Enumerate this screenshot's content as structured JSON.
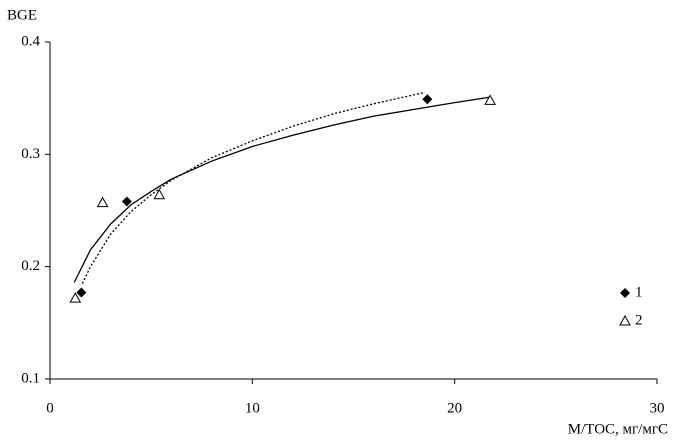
{
  "chart_data": {
    "type": "scatter",
    "x_label": "M/TOC, мг/мгС",
    "y_label": "BGE",
    "xlim": [
      0,
      30
    ],
    "xticks": [
      0,
      10,
      20,
      30
    ],
    "ylim": [
      0.1,
      0.4
    ],
    "yticks": [
      0.1,
      0.2,
      0.3,
      0.4
    ],
    "series": [
      {
        "name": "1",
        "marker": "diamond",
        "color": "#000000",
        "x": [
          1.55,
          3.8,
          18.65
        ],
        "values": [
          0.177,
          0.258,
          0.349
        ]
      },
      {
        "name": "2",
        "marker": "triangle",
        "color": "#000000",
        "x": [
          1.25,
          2.6,
          5.4,
          21.75
        ],
        "values": [
          0.172,
          0.257,
          0.264,
          0.348
        ]
      }
    ],
    "trendlines": [
      {
        "dash": "2,2",
        "x": [
          1.6,
          2,
          3,
          4,
          5,
          6,
          8,
          10,
          12,
          14,
          16,
          18.5
        ],
        "values": [
          0.185,
          0.2,
          0.229,
          0.249,
          0.264,
          0.277,
          0.297,
          0.312,
          0.325,
          0.336,
          0.345,
          0.355
        ]
      },
      {
        "dash": "none",
        "x": [
          1.2,
          2,
          3,
          4,
          5,
          6,
          8,
          10,
          12,
          14,
          16,
          18,
          20,
          21.8
        ],
        "values": [
          0.186,
          0.215,
          0.238,
          0.255,
          0.267,
          0.278,
          0.294,
          0.307,
          0.317,
          0.326,
          0.334,
          0.34,
          0.346,
          0.351
        ]
      }
    ],
    "legend": "right"
  }
}
